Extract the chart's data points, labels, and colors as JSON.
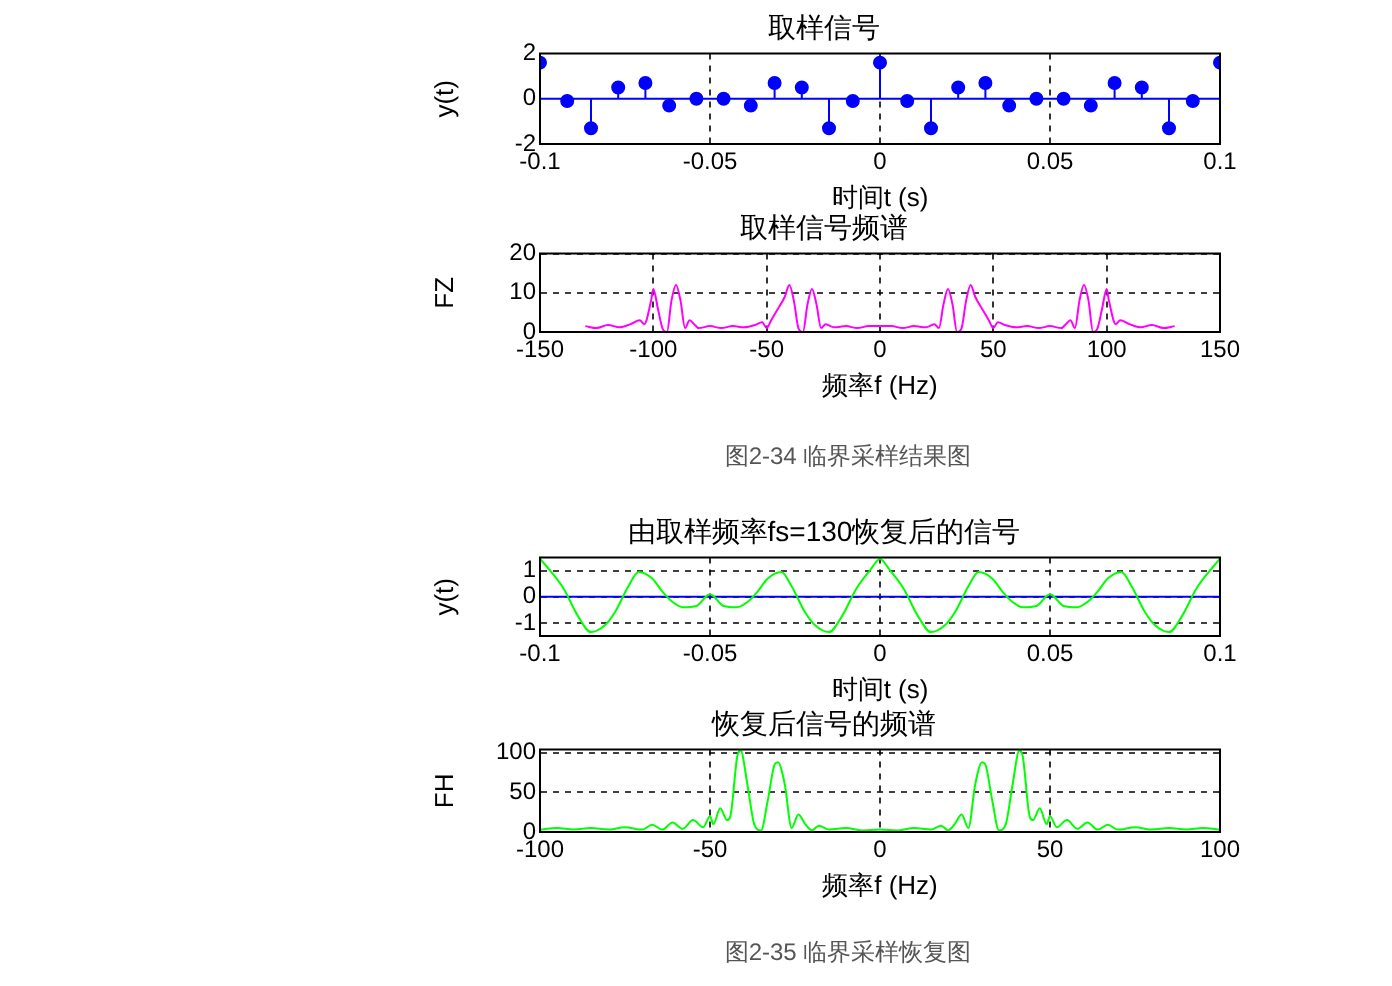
{
  "chart_data": [
    {
      "type": "lollipop",
      "title": "取样信号",
      "xlabel": "时间t (s)",
      "ylabel": "y(t)",
      "xlim": [
        -0.1,
        0.1
      ],
      "xticks": [
        -0.1,
        -0.05,
        0,
        0.05,
        0.1
      ],
      "ylim": [
        -2,
        2
      ],
      "yticks": [
        -2,
        0,
        2
      ],
      "grid": "x",
      "marker": "circle",
      "ref_lines": [
        {
          "axis": "y",
          "value": 0,
          "color": "#0000ff"
        }
      ],
      "series": [
        {
          "color": "#0000ff",
          "x": [
            -0.1,
            -0.092,
            -0.085,
            -0.077,
            -0.069,
            -0.062,
            -0.054,
            -0.046,
            -0.038,
            -0.031,
            -0.023,
            -0.015,
            -0.008,
            0,
            0.008,
            0.015,
            0.023,
            0.031,
            0.038,
            0.046,
            0.054,
            0.062,
            0.069,
            0.077,
            0.085,
            0.092,
            0.1
          ],
          "values": [
            1.6,
            -0.1,
            -1.3,
            0.5,
            0.7,
            -0.3,
            0,
            0,
            -0.3,
            0.7,
            0.5,
            -1.3,
            -0.1,
            1.6,
            -0.1,
            -1.3,
            0.5,
            0.7,
            -0.3,
            0,
            0,
            -0.3,
            0.7,
            0.5,
            -1.3,
            -0.1,
            1.6
          ]
        }
      ]
    },
    {
      "type": "line",
      "title": "取样信号频谱",
      "xlabel": "频率f (Hz)",
      "ylabel": "FZ",
      "xlim": [
        -150,
        150
      ],
      "xticks": [
        -150,
        -100,
        -50,
        0,
        50,
        100,
        150
      ],
      "ylim": [
        0,
        20
      ],
      "yticks": [
        0,
        10,
        20
      ],
      "grid": true,
      "marker": "none",
      "line_style": "solid",
      "annotations": [
        "图2-34 临界采样结果图"
      ],
      "series": [
        {
          "color": "#ff00ff",
          "x": [
            -130,
            -125,
            -120,
            -115,
            -110,
            -106,
            -104,
            -101,
            -100,
            -98,
            -96,
            -94,
            -92,
            -90,
            -88,
            -86,
            -84,
            -82,
            -80,
            -75,
            -70,
            -65,
            -60,
            -55,
            -52,
            -50,
            -48,
            -46,
            -42,
            -40,
            -38,
            -36,
            -34,
            -32,
            -30,
            -28,
            -26,
            -24,
            -22,
            -20,
            -15,
            -10,
            -5,
            0,
            5,
            10,
            15,
            20,
            22,
            24,
            26,
            28,
            30,
            32,
            34,
            36,
            38,
            40,
            42,
            46,
            48,
            50,
            52,
            55,
            60,
            65,
            70,
            75,
            80,
            82,
            84,
            86,
            88,
            90,
            92,
            94,
            96,
            98,
            100,
            101,
            104,
            106,
            110,
            115,
            120,
            125,
            130
          ],
          "values": [
            1.5,
            1,
            1.8,
            1.2,
            2,
            3,
            2,
            8,
            11,
            6,
            1,
            0,
            8,
            12,
            8,
            1,
            3,
            2,
            1,
            1.5,
            1,
            1.5,
            1.2,
            1.8,
            2.5,
            1,
            3,
            5,
            9,
            12,
            8,
            1,
            0,
            7,
            11,
            7,
            1,
            2,
            1.5,
            1.2,
            1.5,
            1,
            1.5,
            1.5,
            1.5,
            1,
            1.5,
            1.2,
            1.5,
            2,
            1,
            7,
            11,
            7,
            0,
            1,
            8,
            12,
            9,
            5,
            3,
            1,
            2.5,
            1.8,
            1.2,
            1.5,
            1,
            1.5,
            1,
            2,
            3,
            1,
            8,
            12,
            8,
            0,
            1,
            6,
            11,
            8,
            2,
            3,
            2,
            1.2,
            1.8,
            1,
            1.5
          ]
        }
      ]
    },
    {
      "type": "line",
      "title": "由取样频率fs=130恢复后的信号",
      "xlabel": "时间t (s)",
      "ylabel": "y(t)",
      "xlim": [
        -0.1,
        0.1
      ],
      "xticks": [
        -0.1,
        -0.05,
        0,
        0.05,
        0.1
      ],
      "ylim": [
        -1.5,
        1.5
      ],
      "yticks": [
        -1,
        0,
        1
      ],
      "grid": true,
      "marker": "none",
      "line_style": "solid",
      "ref_lines": [
        {
          "axis": "y",
          "value": 0,
          "color": "#0000ff"
        }
      ],
      "series": [
        {
          "color": "#00ff00",
          "x": [
            -0.1,
            -0.097,
            -0.093,
            -0.089,
            -0.085,
            -0.081,
            -0.078,
            -0.074,
            -0.071,
            -0.067,
            -0.064,
            -0.061,
            -0.058,
            -0.054,
            -0.05,
            -0.046,
            -0.042,
            -0.039,
            -0.036,
            -0.033,
            -0.029,
            -0.026,
            -0.022,
            -0.019,
            -0.015,
            -0.011,
            -0.007,
            -0.003,
            0,
            0.003,
            0.007,
            0.011,
            0.015,
            0.019,
            0.022,
            0.026,
            0.029,
            0.033,
            0.036,
            0.039,
            0.042,
            0.046,
            0.05,
            0.054,
            0.058,
            0.061,
            0.064,
            0.067,
            0.071,
            0.074,
            0.078,
            0.081,
            0.085,
            0.089,
            0.093,
            0.097,
            0.1
          ],
          "values": [
            1.45,
            1,
            0.3,
            -0.7,
            -1.35,
            -1.1,
            -0.6,
            0.4,
            0.95,
            0.7,
            0.2,
            -0.2,
            -0.4,
            -0.35,
            0.1,
            -0.35,
            -0.4,
            -0.2,
            0.2,
            0.7,
            0.95,
            0.4,
            -0.6,
            -1.1,
            -1.35,
            -0.7,
            0.3,
            1,
            1.45,
            1,
            0.3,
            -0.7,
            -1.35,
            -1.1,
            -0.6,
            0.4,
            0.95,
            0.7,
            0.2,
            -0.2,
            -0.4,
            -0.35,
            0.1,
            -0.35,
            -0.4,
            -0.2,
            0.2,
            0.7,
            0.95,
            0.4,
            -0.6,
            -1.1,
            -1.35,
            -0.7,
            0.3,
            1,
            1.45
          ]
        }
      ]
    },
    {
      "type": "line",
      "title": "恢复后信号的频谱",
      "xlabel": "频率f (Hz)",
      "ylabel": "FH",
      "xlim": [
        -100,
        100
      ],
      "xticks": [
        -100,
        -50,
        0,
        50,
        100
      ],
      "ylim": [
        0,
        104
      ],
      "yticks": [
        0,
        50,
        100
      ],
      "grid": true,
      "marker": "none",
      "line_style": "solid",
      "annotations": [
        "图2-35 临界采样恢复图"
      ],
      "series": [
        {
          "color": "#00ff00",
          "x": [
            -100,
            -95,
            -90,
            -85,
            -80,
            -75,
            -70,
            -67,
            -64,
            -61,
            -58,
            -55,
            -52,
            -50,
            -49,
            -47,
            -45,
            -44,
            -42,
            -41,
            -39,
            -37,
            -35,
            -33,
            -31,
            -30,
            -28,
            -26,
            -24,
            -22,
            -20,
            -18,
            -15,
            -10,
            -5,
            0,
            5,
            10,
            15,
            18,
            20,
            22,
            24,
            26,
            28,
            30,
            31,
            33,
            35,
            37,
            39,
            41,
            42,
            44,
            45,
            47,
            49,
            50,
            52,
            55,
            58,
            61,
            64,
            67,
            70,
            75,
            80,
            85,
            90,
            95,
            100
          ],
          "values": [
            3,
            5,
            3,
            5,
            3,
            6,
            3,
            9,
            3,
            12,
            4,
            15,
            6,
            20,
            10,
            30,
            15,
            20,
            95,
            103,
            60,
            10,
            2,
            40,
            85,
            88,
            60,
            5,
            22,
            10,
            2,
            8,
            3,
            5,
            2,
            3,
            2,
            5,
            3,
            8,
            2,
            10,
            22,
            5,
            60,
            88,
            85,
            40,
            2,
            10,
            60,
            103,
            95,
            20,
            15,
            30,
            10,
            20,
            6,
            15,
            4,
            12,
            3,
            9,
            3,
            6,
            3,
            5,
            3,
            5,
            3
          ]
        }
      ]
    }
  ]
}
